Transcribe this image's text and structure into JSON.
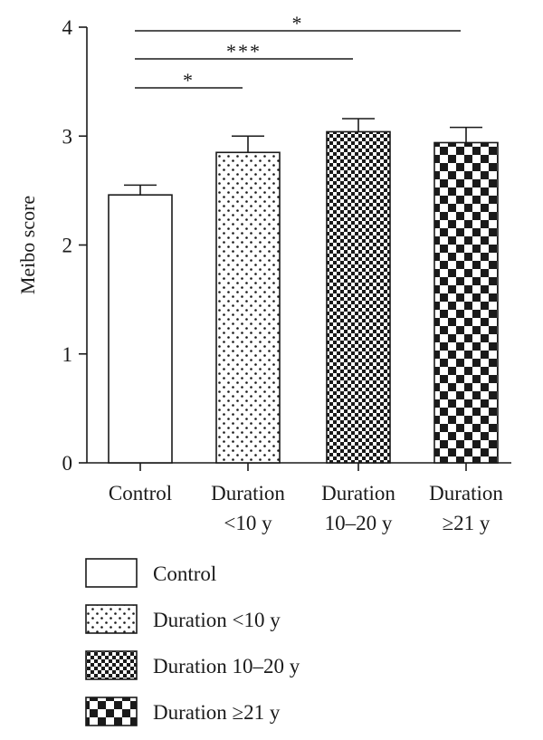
{
  "chart_data": {
    "type": "bar",
    "ylabel": "Meibo score",
    "ylim": [
      0,
      4
    ],
    "yticks": [
      "0",
      "1",
      "2",
      "3",
      "4"
    ],
    "categories": [
      {
        "lines": [
          "Control"
        ]
      },
      {
        "lines": [
          "Duration",
          "<10 y"
        ]
      },
      {
        "lines": [
          "Duration",
          "10–20 y"
        ]
      },
      {
        "lines": [
          "Duration",
          "≥21 y"
        ]
      }
    ],
    "values": [
      2.46,
      2.85,
      3.04,
      2.94
    ],
    "error_upper": [
      2.55,
      3.0,
      3.16,
      3.08
    ],
    "patterns": [
      "none",
      "dots",
      "fine-checker",
      "coarse-checker"
    ],
    "significance": [
      {
        "from": 0,
        "to": 3,
        "label": "*"
      },
      {
        "from": 0,
        "to": 2,
        "label": "***"
      },
      {
        "from": 0,
        "to": 1,
        "label": "*"
      }
    ],
    "legend": [
      {
        "label": "Control",
        "pattern": "none"
      },
      {
        "label": "Duration <10 y",
        "pattern": "dots"
      },
      {
        "label": "Duration 10–20 y",
        "pattern": "fine-checker"
      },
      {
        "label": "Duration ≥21 y",
        "pattern": "coarse-checker"
      }
    ],
    "grid": false,
    "legend_position": "bottom",
    "colors": {
      "ink": "#1a1a1a",
      "background": "#ffffff"
    }
  }
}
